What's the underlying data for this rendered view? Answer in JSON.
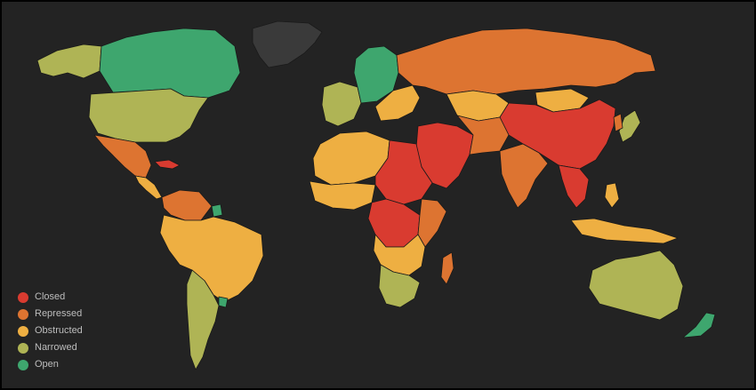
{
  "legend": [
    {
      "label": "Closed",
      "color": "#d93b30"
    },
    {
      "label": "Repressed",
      "color": "#dd7431"
    },
    {
      "label": "Obstructed",
      "color": "#eeaf42"
    },
    {
      "label": "Narrowed",
      "color": "#afb455"
    },
    {
      "label": "Open",
      "color": "#3ea66e"
    }
  ],
  "colors": {
    "background": "#232323",
    "no_data": "#3a3a3a"
  }
}
